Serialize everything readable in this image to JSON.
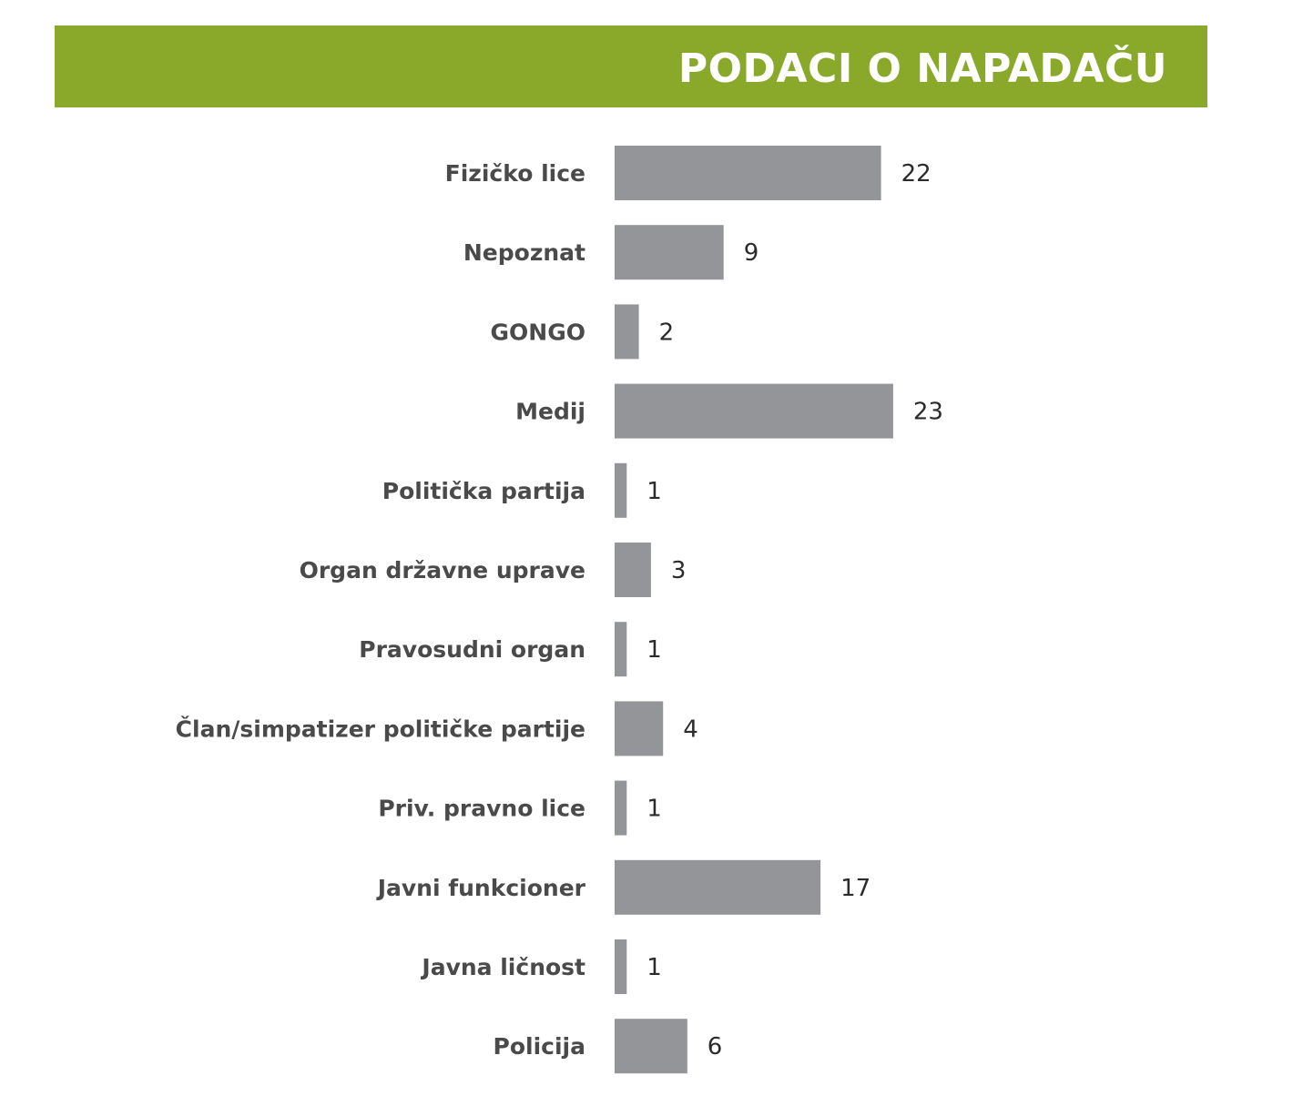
{
  "header": {
    "title": "PODACI O NAPADAČU",
    "background_color": "#8aa92b",
    "text_color": "#ffffff"
  },
  "chart_data": {
    "type": "bar",
    "orientation": "horizontal",
    "title": "PODACI O NAPADAČU",
    "categories": [
      "Fizičko lice",
      "Nepoznat",
      "GONGO",
      "Medij",
      "Politička partija",
      "Organ državne uprave",
      "Pravosudni organ",
      "Član/simpatizer političke partije",
      "Priv. pravno lice",
      "Javni funkcioner",
      "Javna ličnost",
      "Policija"
    ],
    "values": [
      22,
      9,
      2,
      23,
      1,
      3,
      1,
      4,
      1,
      17,
      1,
      6
    ],
    "bar_color": "#939598",
    "label_color": "#4a4a4a",
    "value_color": "#2b2b2b",
    "grid": false,
    "legend": "none",
    "data_labels": true
  }
}
